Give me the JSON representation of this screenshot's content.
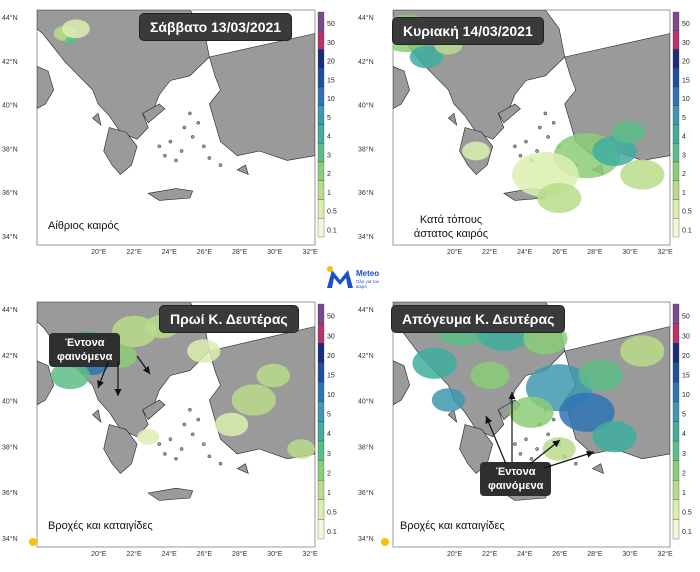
{
  "panels": [
    {
      "title": "Σάββατο 13/03/2021",
      "note": "Αίθριος καιρός"
    },
    {
      "title": "Κυριακή 14/03/2021",
      "note": "Κατά τόπους\nάστατος καιρός"
    },
    {
      "title": "Πρωί Κ. Δευτέρας",
      "note": "Βροχές και καταιγίδες",
      "callout": "Έντονα\nφαινόμενα"
    },
    {
      "title": "Απόγευμα Κ. Δευτέρας",
      "note": "Βροχές και καταιγίδες",
      "callout": "Έντονα\nφαινόμενα"
    }
  ],
  "latitude_labels": [
    "44°N",
    "42°N",
    "40°N",
    "38°N",
    "36°N",
    "34°N"
  ],
  "longitude_labels": [
    "20°E",
    "22°E",
    "24°E",
    "26°E",
    "28°E",
    "30°E",
    "32°E"
  ],
  "colorbar_labels": [
    "50",
    "30",
    "20",
    "15",
    "10",
    "5",
    "4",
    "3",
    "2",
    "1",
    "0.5",
    "0.1"
  ],
  "colorbar_colors": [
    "#7a4a8f",
    "#b8326b",
    "#1a2d7a",
    "#1e4fa3",
    "#2f74b5",
    "#3e99b0",
    "#3fae9f",
    "#5bbd87",
    "#8bcd78",
    "#b8dc8a",
    "#dbeeb0",
    "#f3f8d8"
  ],
  "colors": {
    "land": "#9a9a9a",
    "sea": "#ffffff",
    "border": "#222222",
    "logo_blue": "#1c4fd0"
  },
  "logo": {
    "name": "Meteo",
    "tagline": "Όλα για τον καιρό"
  }
}
